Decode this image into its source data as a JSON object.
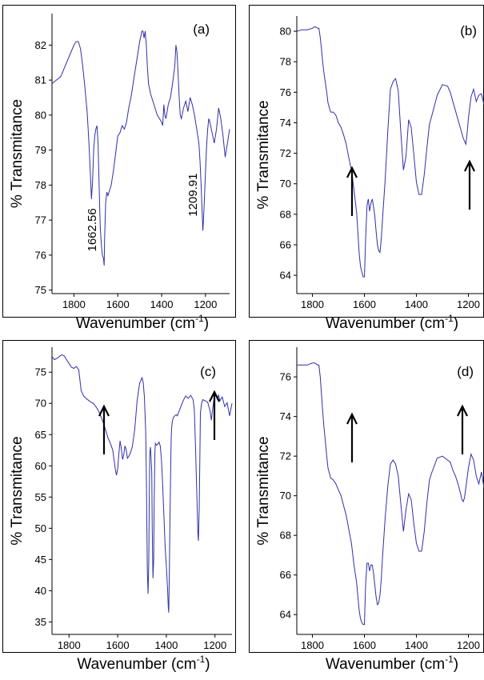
{
  "chart_data": [
    {
      "type": "line",
      "panel_label": "(a)",
      "xlabel_main": "Wavenumber  (cm",
      "xlabel_sup": "-1",
      "xlabel_close": ")",
      "ylabel": "% Transmitance",
      "xlim": [
        1900,
        1090
      ],
      "ylim": [
        74.9,
        82.9
      ],
      "xticks": [
        1800,
        1600,
        1400,
        1200
      ],
      "yticks": [
        75,
        76,
        77,
        78,
        79,
        80,
        81,
        82
      ],
      "series": [
        {
          "color": "#3030a8",
          "x": [
            1900,
            1880,
            1860,
            1840,
            1820,
            1800,
            1790,
            1780,
            1770,
            1760,
            1750,
            1740,
            1735,
            1730,
            1725,
            1720,
            1715,
            1710,
            1705,
            1700,
            1695,
            1690,
            1685,
            1680,
            1675,
            1670,
            1665,
            1662,
            1660,
            1655,
            1650,
            1645,
            1640,
            1630,
            1620,
            1610,
            1600,
            1590,
            1580,
            1570,
            1560,
            1550,
            1540,
            1530,
            1520,
            1510,
            1500,
            1490,
            1485,
            1480,
            1475,
            1470,
            1465,
            1460,
            1450,
            1440,
            1430,
            1420,
            1410,
            1400,
            1395,
            1390,
            1385,
            1380,
            1370,
            1360,
            1350,
            1340,
            1335,
            1330,
            1325,
            1320,
            1315,
            1310,
            1300,
            1290,
            1280,
            1270,
            1260,
            1250,
            1240,
            1230,
            1225,
            1220,
            1215,
            1212,
            1210,
            1205,
            1200,
            1195,
            1190,
            1185,
            1180,
            1170,
            1160,
            1150,
            1140,
            1130,
            1120,
            1110,
            1100,
            1090
          ],
          "y": [
            80.9,
            81.0,
            81.1,
            81.4,
            81.7,
            82.0,
            82.1,
            82.1,
            81.9,
            81.4,
            80.8,
            80.1,
            79.6,
            79.0,
            78.3,
            77.6,
            78.1,
            79.0,
            79.4,
            79.6,
            79.7,
            79.2,
            78.0,
            76.8,
            76.3,
            76.0,
            75.9,
            75.7,
            76.5,
            77.5,
            77.8,
            77.7,
            77.8,
            78.0,
            78.4,
            78.9,
            79.4,
            79.5,
            79.7,
            79.6,
            79.8,
            80.2,
            80.5,
            80.9,
            81.3,
            81.7,
            82.1,
            82.4,
            82.4,
            82.2,
            82.4,
            82.0,
            81.4,
            80.9,
            80.6,
            80.4,
            80.2,
            80.0,
            79.9,
            79.8,
            79.7,
            80.3,
            80.0,
            79.9,
            80.3,
            80.5,
            80.9,
            81.4,
            82.0,
            81.8,
            81.2,
            80.5,
            80.0,
            79.9,
            80.2,
            80.4,
            80.1,
            80.5,
            80.3,
            80.0,
            79.6,
            79.2,
            78.7,
            78.0,
            77.2,
            76.7,
            76.9,
            77.6,
            78.4,
            79.1,
            79.6,
            79.9,
            79.8,
            79.5,
            79.2,
            79.6,
            80.2,
            79.9,
            79.4,
            78.8,
            79.2,
            79.6
          ]
        }
      ],
      "annotations": [
        {
          "text": "1662.56",
          "x": 1700,
          "y": 76.1
        },
        {
          "text": "1209.91",
          "x": 1240,
          "y": 77.1
        }
      ]
    },
    {
      "type": "line",
      "panel_label": "(b)",
      "xlabel_main": "Wavenumber  (cm",
      "xlabel_sup": "-1",
      "xlabel_close": ")",
      "ylabel": "% Transmitance",
      "xlim": [
        1860,
        1140
      ],
      "ylim": [
        62.8,
        81.0
      ],
      "xticks": [
        1800,
        1600,
        1400,
        1200
      ],
      "yticks": [
        64,
        66,
        68,
        70,
        72,
        74,
        76,
        78,
        80
      ],
      "series": [
        {
          "color": "#3030a8",
          "x": [
            1860,
            1840,
            1820,
            1800,
            1790,
            1780,
            1775,
            1770,
            1765,
            1760,
            1755,
            1750,
            1745,
            1740,
            1730,
            1720,
            1710,
            1700,
            1690,
            1680,
            1670,
            1660,
            1650,
            1640,
            1630,
            1625,
            1620,
            1615,
            1610,
            1605,
            1600,
            1598,
            1595,
            1590,
            1585,
            1580,
            1575,
            1570,
            1565,
            1560,
            1555,
            1550,
            1545,
            1540,
            1535,
            1530,
            1520,
            1510,
            1500,
            1490,
            1480,
            1470,
            1460,
            1450,
            1440,
            1430,
            1420,
            1410,
            1400,
            1390,
            1380,
            1370,
            1360,
            1350,
            1340,
            1320,
            1300,
            1280,
            1270,
            1260,
            1250,
            1240,
            1230,
            1220,
            1215,
            1210,
            1205,
            1200,
            1190,
            1180,
            1170,
            1160,
            1150,
            1140
          ],
          "y": [
            80.0,
            80.1,
            80.1,
            80.2,
            80.3,
            80.2,
            80.2,
            79.6,
            78.8,
            77.9,
            77.2,
            76.6,
            76.0,
            75.3,
            74.7,
            74.7,
            74.5,
            74.0,
            73.7,
            73.2,
            72.6,
            71.7,
            70.9,
            69.6,
            68.1,
            66.8,
            65.4,
            64.6,
            64.2,
            63.9,
            63.9,
            64.8,
            66.5,
            68.6,
            69.0,
            68.2,
            68.7,
            69.0,
            68.5,
            67.9,
            66.9,
            66.0,
            65.6,
            65.5,
            66.4,
            67.8,
            70.3,
            73.5,
            76.2,
            76.7,
            76.9,
            76.1,
            73.4,
            70.9,
            71.8,
            74.2,
            73.7,
            71.9,
            70.1,
            69.3,
            69.3,
            70.6,
            72.3,
            73.9,
            74.5,
            75.8,
            76.5,
            76.4,
            76.0,
            75.4,
            74.8,
            74.2,
            73.6,
            73.0,
            72.8,
            72.6,
            73.3,
            74.3,
            75.7,
            76.2,
            75.4,
            75.8,
            75.9,
            75.2
          ]
        }
      ],
      "annotations": []
    },
    {
      "type": "line",
      "panel_label": "(c)",
      "xlabel_main": "Wavenumber  (cm",
      "xlabel_sup": "-1",
      "xlabel_close": ")",
      "ylabel": "% Transmitance",
      "xlim": [
        1870,
        1130
      ],
      "ylim": [
        33.0,
        79.0
      ],
      "xticks": [
        1800,
        1600,
        1400,
        1200
      ],
      "yticks": [
        35,
        40,
        45,
        50,
        55,
        60,
        65,
        70,
        75
      ],
      "series": [
        {
          "color": "#3030a8",
          "x": [
            1870,
            1860,
            1850,
            1840,
            1830,
            1820,
            1810,
            1800,
            1790,
            1780,
            1770,
            1760,
            1750,
            1740,
            1730,
            1720,
            1710,
            1700,
            1690,
            1680,
            1670,
            1660,
            1650,
            1640,
            1630,
            1620,
            1615,
            1610,
            1605,
            1600,
            1595,
            1590,
            1585,
            1580,
            1575,
            1570,
            1565,
            1560,
            1550,
            1540,
            1530,
            1520,
            1510,
            1500,
            1495,
            1490,
            1485,
            1482,
            1480,
            1478,
            1475,
            1472,
            1470,
            1468,
            1465,
            1460,
            1458,
            1455,
            1452,
            1450,
            1447,
            1445,
            1440,
            1435,
            1430,
            1425,
            1420,
            1415,
            1410,
            1405,
            1400,
            1395,
            1392,
            1390,
            1388,
            1385,
            1382,
            1380,
            1378,
            1375,
            1370,
            1365,
            1360,
            1355,
            1350,
            1340,
            1330,
            1320,
            1310,
            1300,
            1290,
            1285,
            1280,
            1275,
            1270,
            1268,
            1265,
            1262,
            1260,
            1255,
            1250,
            1240,
            1230,
            1220,
            1215,
            1210,
            1205,
            1200,
            1195,
            1190,
            1185,
            1180,
            1170,
            1160,
            1150,
            1140,
            1130
          ],
          "y": [
            77.5,
            77.0,
            77.2,
            77.5,
            77.8,
            77.6,
            77.0,
            76.4,
            75.8,
            75.6,
            75.9,
            75.4,
            72.0,
            71.2,
            70.8,
            70.5,
            70.2,
            70.0,
            69.5,
            68.9,
            68.0,
            67.0,
            65.8,
            64.5,
            63.6,
            62.5,
            61.0,
            59.5,
            58.5,
            59.5,
            62.0,
            64.0,
            62.7,
            61.0,
            61.8,
            63.2,
            62.6,
            61.2,
            61.8,
            63.0,
            65.8,
            70.4,
            73.2,
            74.1,
            73.4,
            71.0,
            65.5,
            58.0,
            50.0,
            43.0,
            39.5,
            45.0,
            55.0,
            62.0,
            63.0,
            59.0,
            50.0,
            42.0,
            45.0,
            54.0,
            62.0,
            63.6,
            63.3,
            63.5,
            63.8,
            63.2,
            61.0,
            57.0,
            52.0,
            47.0,
            44.0,
            40.5,
            37.5,
            36.5,
            42.0,
            52.0,
            60.0,
            64.5,
            66.2,
            67.2,
            67.8,
            68.0,
            68.2,
            68.0,
            68.5,
            69.5,
            70.5,
            71.2,
            70.8,
            71.3,
            70.6,
            69.0,
            63.0,
            56.0,
            49.0,
            48.0,
            53.0,
            62.0,
            68.5,
            70.0,
            70.6,
            70.4,
            70.2,
            68.8,
            67.3,
            69.0,
            70.5,
            71.6,
            71.2,
            70.7,
            71.3,
            70.4,
            71.0,
            69.5,
            70.1,
            68.0,
            70.0
          ]
        }
      ],
      "annotations": []
    },
    {
      "type": "line",
      "panel_label": "(d)",
      "xlabel_main": "Wavenumber  (cm",
      "xlabel_sup": "-1",
      "xlabel_close": ")",
      "ylabel": "% Transmitance",
      "xlim": [
        1860,
        1140
      ],
      "ylim": [
        63.0,
        77.5
      ],
      "xticks": [
        1800,
        1600,
        1400,
        1200
      ],
      "yticks": [
        64,
        66,
        68,
        70,
        72,
        74,
        76
      ],
      "series": [
        {
          "color": "#3030a8",
          "x": [
            1860,
            1840,
            1820,
            1800,
            1790,
            1780,
            1775,
            1770,
            1765,
            1760,
            1755,
            1750,
            1745,
            1740,
            1730,
            1720,
            1710,
            1700,
            1690,
            1680,
            1670,
            1660,
            1650,
            1640,
            1630,
            1625,
            1620,
            1615,
            1610,
            1605,
            1600,
            1598,
            1595,
            1590,
            1585,
            1580,
            1575,
            1570,
            1565,
            1560,
            1555,
            1550,
            1545,
            1540,
            1535,
            1530,
            1520,
            1510,
            1500,
            1490,
            1480,
            1470,
            1460,
            1450,
            1440,
            1430,
            1420,
            1410,
            1400,
            1390,
            1380,
            1370,
            1360,
            1350,
            1340,
            1320,
            1300,
            1280,
            1270,
            1260,
            1250,
            1240,
            1230,
            1225,
            1220,
            1215,
            1210,
            1200,
            1190,
            1180,
            1170,
            1160,
            1150,
            1140
          ],
          "y": [
            76.6,
            76.6,
            76.6,
            76.7,
            76.7,
            76.6,
            76.6,
            76.0,
            75.1,
            74.2,
            73.4,
            72.7,
            72.0,
            71.4,
            70.9,
            70.8,
            70.6,
            70.3,
            70.0,
            69.5,
            69.0,
            68.3,
            67.6,
            66.5,
            65.6,
            64.9,
            64.2,
            63.8,
            63.6,
            63.5,
            63.5,
            64.3,
            65.6,
            66.6,
            66.6,
            66.2,
            66.5,
            66.5,
            66.1,
            65.5,
            64.9,
            64.5,
            64.6,
            65.0,
            65.8,
            67.0,
            68.9,
            70.5,
            71.6,
            71.8,
            71.6,
            71.0,
            69.6,
            68.2,
            69.3,
            70.1,
            69.8,
            68.6,
            67.6,
            67.2,
            67.2,
            68.2,
            69.6,
            70.8,
            71.2,
            71.9,
            72.0,
            71.8,
            71.7,
            71.3,
            71.0,
            70.6,
            70.1,
            69.8,
            69.7,
            69.9,
            70.4,
            71.4,
            72.1,
            71.8,
            71.0,
            70.6,
            71.2,
            70.4
          ]
        }
      ],
      "annotations": []
    }
  ]
}
